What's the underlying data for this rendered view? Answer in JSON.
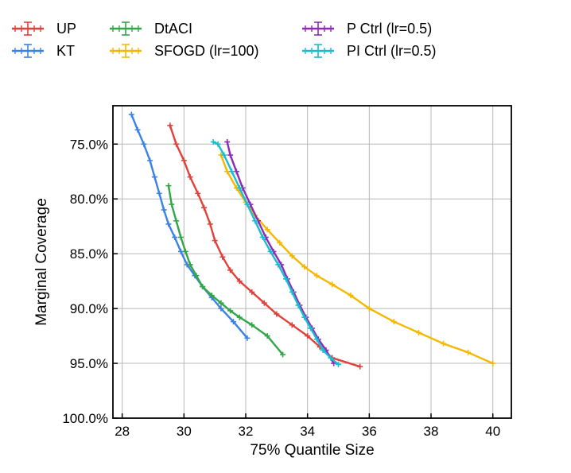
{
  "chart_data": {
    "type": "line",
    "title": "",
    "xlabel": "75% Quantile Size",
    "ylabel": "Marginal Coverage",
    "xlim": [
      27.7,
      40.6
    ],
    "ylim": [
      1.0,
      0.715
    ],
    "xticks": [
      28,
      30,
      32,
      34,
      36,
      38,
      40
    ],
    "xtick_labels": [
      "28",
      "30",
      "32",
      "34",
      "36",
      "38",
      "40"
    ],
    "yticks": [
      0.75,
      0.8,
      0.85,
      0.9,
      0.95,
      1.0
    ],
    "ytick_labels": [
      "75.0%",
      "80.0%",
      "85.0%",
      "90.0%",
      "95.0%",
      "100.0%"
    ],
    "grid": true,
    "legend_position": "top",
    "series": [
      {
        "name": "UP",
        "color": "#e0413a",
        "x": [
          29.55,
          29.75,
          30.0,
          30.2,
          30.45,
          30.65,
          30.85,
          31.0,
          31.25,
          31.5,
          31.8,
          32.2,
          32.6,
          33.0,
          33.5,
          34.0,
          34.4,
          34.8,
          35.7
        ],
        "y": [
          0.733,
          0.75,
          0.765,
          0.78,
          0.795,
          0.808,
          0.823,
          0.838,
          0.853,
          0.865,
          0.875,
          0.885,
          0.895,
          0.905,
          0.915,
          0.925,
          0.935,
          0.945,
          0.953
        ]
      },
      {
        "name": "KT",
        "color": "#3b82e6",
        "x": [
          28.3,
          28.5,
          28.7,
          28.9,
          29.05,
          29.2,
          29.35,
          29.5,
          29.7,
          29.9,
          30.1,
          30.35,
          30.6,
          30.9,
          31.2,
          31.6,
          32.05
        ],
        "y": [
          0.723,
          0.737,
          0.75,
          0.765,
          0.78,
          0.795,
          0.81,
          0.823,
          0.835,
          0.848,
          0.86,
          0.87,
          0.88,
          0.89,
          0.9,
          0.912,
          0.927
        ]
      },
      {
        "name": "DtACI",
        "color": "#33a648",
        "x": [
          29.5,
          29.6,
          29.75,
          29.9,
          30.05,
          30.2,
          30.4,
          30.6,
          30.9,
          31.2,
          31.5,
          31.8,
          32.2,
          32.7,
          33.2
        ],
        "y": [
          0.788,
          0.805,
          0.82,
          0.835,
          0.848,
          0.86,
          0.87,
          0.88,
          0.888,
          0.895,
          0.902,
          0.908,
          0.915,
          0.925,
          0.942
        ]
      },
      {
        "name": "SFOGD (lr=100)",
        "color": "#f5b800",
        "x": [
          31.2,
          31.4,
          31.7,
          32.0,
          32.3,
          32.7,
          33.1,
          33.5,
          33.9,
          34.3,
          34.8,
          35.4,
          36.0,
          36.8,
          37.6,
          38.4,
          39.2,
          40.0
        ],
        "y": [
          0.76,
          0.775,
          0.79,
          0.803,
          0.815,
          0.828,
          0.84,
          0.852,
          0.862,
          0.87,
          0.878,
          0.888,
          0.9,
          0.912,
          0.922,
          0.932,
          0.94,
          0.95
        ]
      },
      {
        "name": "P Ctrl (lr=0.5)",
        "color": "#8f2ab8",
        "x": [
          31.4,
          31.5,
          31.7,
          31.9,
          32.15,
          32.4,
          32.65,
          32.9,
          33.15,
          33.35,
          33.55,
          33.75,
          33.95,
          34.15,
          34.35,
          34.6,
          34.85
        ],
        "y": [
          0.748,
          0.76,
          0.775,
          0.79,
          0.805,
          0.82,
          0.835,
          0.848,
          0.86,
          0.873,
          0.885,
          0.897,
          0.908,
          0.918,
          0.928,
          0.938,
          0.95
        ]
      },
      {
        "name": "PI Ctrl (lr=0.5)",
        "color": "#17becf",
        "x": [
          30.95,
          31.1,
          31.3,
          31.55,
          31.8,
          32.05,
          32.3,
          32.55,
          32.8,
          33.05,
          33.3,
          33.5,
          33.7,
          33.9,
          34.1,
          34.3,
          34.5,
          34.75,
          35.0
        ],
        "y": [
          0.748,
          0.75,
          0.76,
          0.775,
          0.79,
          0.805,
          0.82,
          0.835,
          0.848,
          0.86,
          0.873,
          0.885,
          0.897,
          0.908,
          0.918,
          0.928,
          0.938,
          0.945,
          0.951
        ]
      }
    ]
  }
}
